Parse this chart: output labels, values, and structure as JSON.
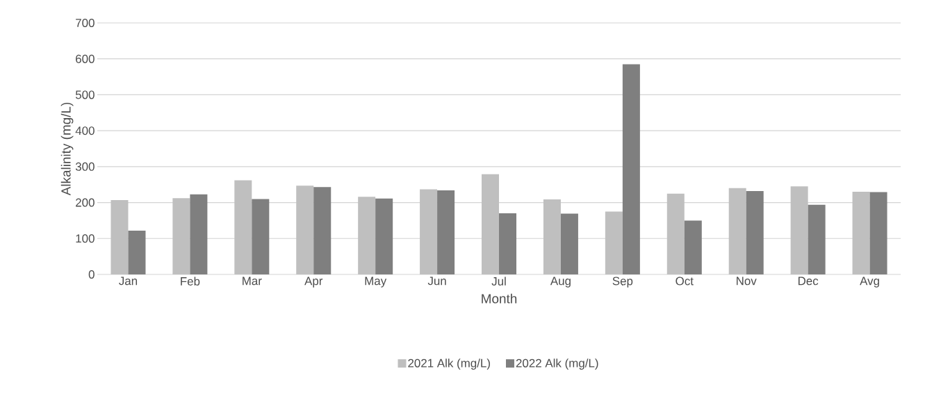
{
  "chart_data": {
    "type": "bar",
    "xlabel": "Month",
    "ylabel": "Alkalinity (mg/L)",
    "categories": [
      "Jan",
      "Feb",
      "Mar",
      "Apr",
      "May",
      "Jun",
      "Jul",
      "Aug",
      "Sep",
      "Oct",
      "Nov",
      "Dec",
      "Avg"
    ],
    "series": [
      {
        "name": "2021 Alk (mg/L)",
        "color": "#bfbfbf",
        "values": [
          207,
          212,
          262,
          247,
          216,
          237,
          279,
          209,
          175,
          225,
          240,
          245,
          230
        ]
      },
      {
        "name": "2022 Alk (mg/L)",
        "color": "#7f7f7f",
        "values": [
          122,
          223,
          210,
          243,
          211,
          234,
          170,
          169,
          585,
          150,
          232,
          194,
          229
        ]
      }
    ],
    "ylim": [
      0,
      700
    ],
    "yticks": [
      0,
      100,
      200,
      300,
      400,
      500,
      600,
      700
    ],
    "grid": "y",
    "legend": "bottom"
  }
}
